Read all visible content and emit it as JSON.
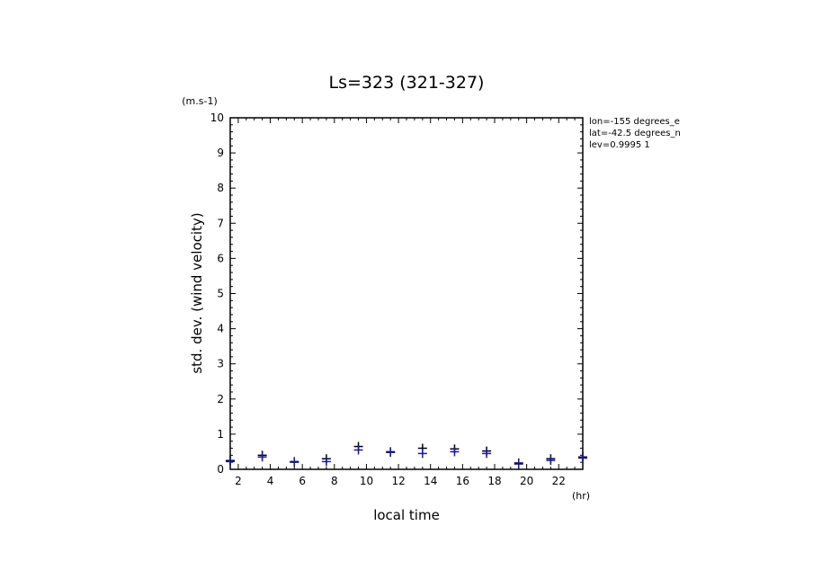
{
  "chart_data": {
    "type": "scatter",
    "title": "Ls=323 (321-327)",
    "xlabel": "local time",
    "ylabel": "std. dev. (wind velocity)",
    "x_unit": "(hr)",
    "y_unit": "(m.s-1)",
    "xlim": [
      1.5,
      23.5
    ],
    "ylim": [
      0,
      10
    ],
    "x_ticks": [
      2,
      4,
      6,
      8,
      10,
      12,
      14,
      16,
      18,
      20,
      22
    ],
    "y_ticks": [
      0,
      1,
      2,
      3,
      4,
      5,
      6,
      7,
      8,
      9,
      10
    ],
    "grid": false,
    "annotations": [
      "lon=-155 degrees_e",
      "lat=-42.5 degrees_n",
      "lev=0.9995 1"
    ],
    "series": [
      {
        "marker": "+",
        "color": "#000000",
        "points": [
          {
            "x": 1.5,
            "y": 0.25
          },
          {
            "x": 3.5,
            "y": 0.4
          },
          {
            "x": 5.5,
            "y": 0.22
          },
          {
            "x": 7.5,
            "y": 0.3
          },
          {
            "x": 9.5,
            "y": 0.65
          },
          {
            "x": 11.5,
            "y": 0.5
          },
          {
            "x": 13.5,
            "y": 0.6
          },
          {
            "x": 15.5,
            "y": 0.58
          },
          {
            "x": 17.5,
            "y": 0.52
          },
          {
            "x": 19.5,
            "y": 0.18
          },
          {
            "x": 21.5,
            "y": 0.3
          },
          {
            "x": 23.5,
            "y": 0.35
          }
        ]
      },
      {
        "marker": "+",
        "color": "#1a1aa0",
        "points": [
          {
            "x": 1.5,
            "y": 0.22
          },
          {
            "x": 3.5,
            "y": 0.35
          },
          {
            "x": 5.5,
            "y": 0.2
          },
          {
            "x": 7.5,
            "y": 0.22
          },
          {
            "x": 9.5,
            "y": 0.55
          },
          {
            "x": 11.5,
            "y": 0.48
          },
          {
            "x": 13.5,
            "y": 0.45
          },
          {
            "x": 15.5,
            "y": 0.5
          },
          {
            "x": 17.5,
            "y": 0.45
          },
          {
            "x": 19.5,
            "y": 0.15
          },
          {
            "x": 21.5,
            "y": 0.25
          },
          {
            "x": 23.5,
            "y": 0.32
          }
        ]
      }
    ]
  }
}
